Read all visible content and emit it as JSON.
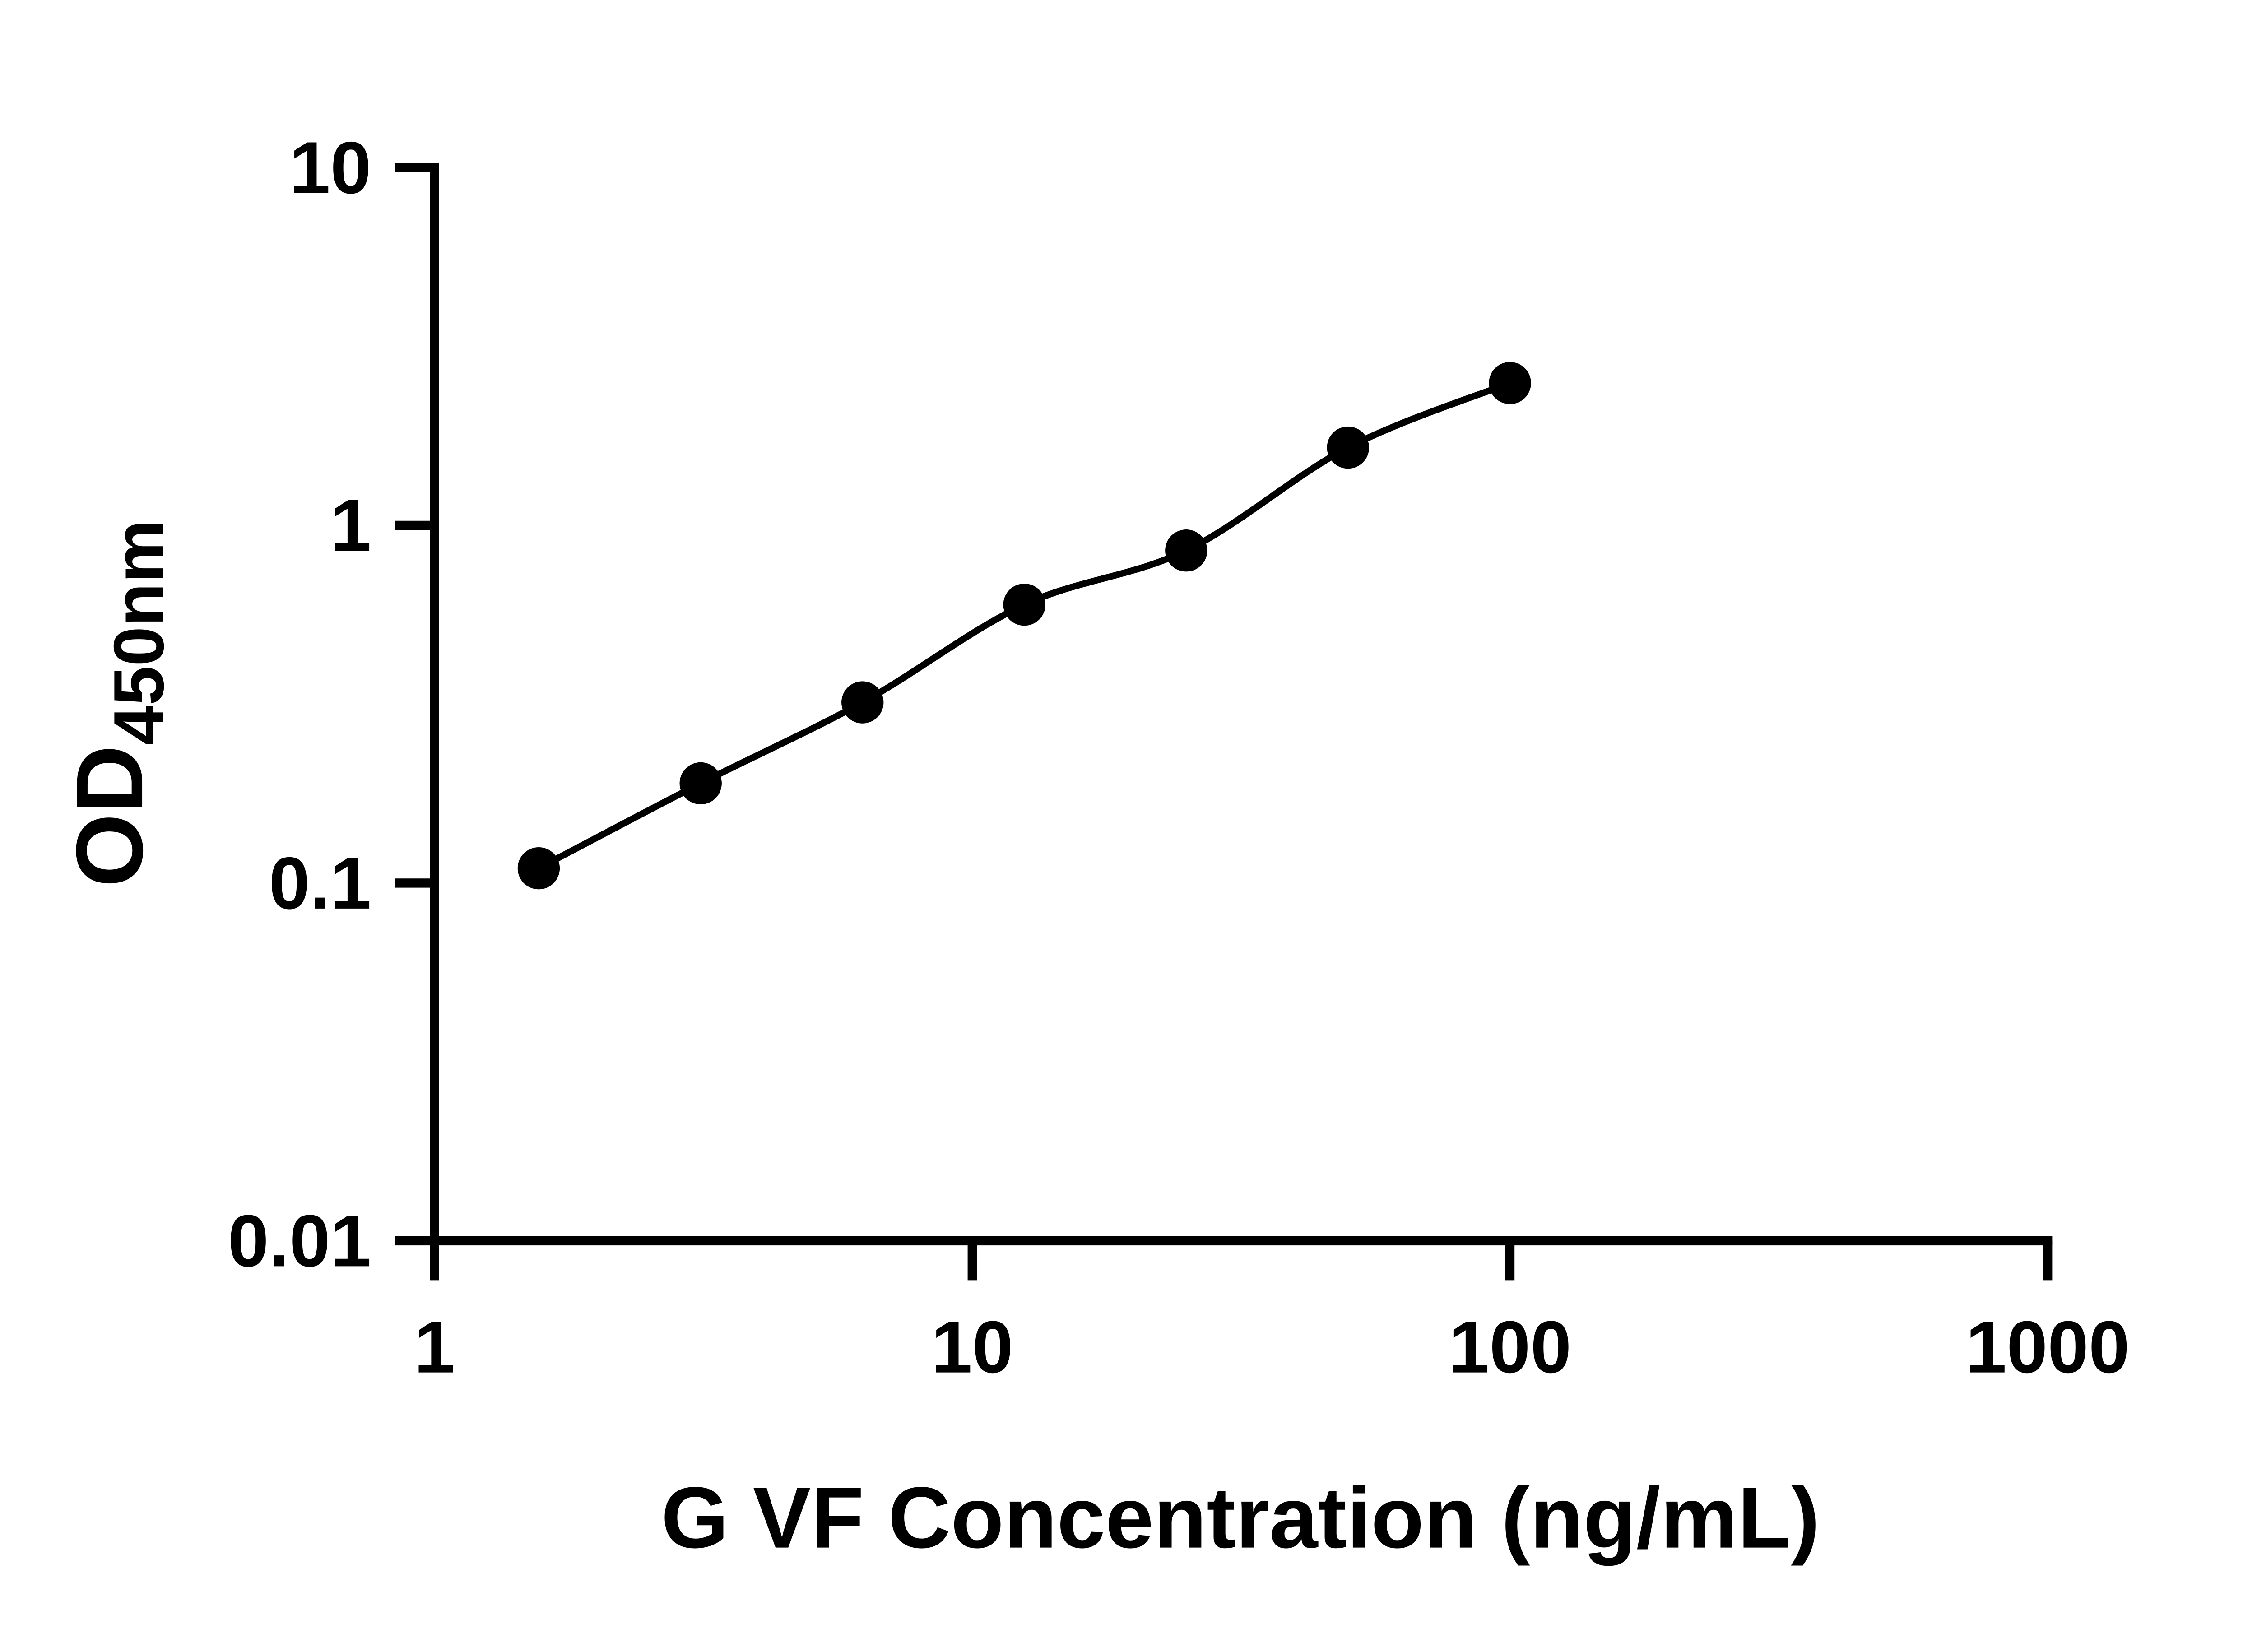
{
  "figure": {
    "background": "#ffffff"
  },
  "chart_data": {
    "type": "scatter",
    "curve": "smooth",
    "x": [
      1.5625,
      3.125,
      6.25,
      12.5,
      25,
      50,
      100
    ],
    "y": [
      0.11,
      0.19,
      0.32,
      0.6,
      0.85,
      1.65,
      2.5
    ],
    "xlabel": "G VF Concentration (ng/mL)",
    "ylabel_main": "OD",
    "ylabel_sub": "450nm",
    "xscale": "log",
    "yscale": "log",
    "xlim": [
      1,
      1000
    ],
    "ylim": [
      0.01,
      10
    ],
    "x_ticks": [
      1,
      10,
      100,
      1000
    ],
    "x_tick_labels": [
      "1",
      "10",
      "100",
      "1000"
    ],
    "y_ticks": [
      0.01,
      0.1,
      1,
      10
    ],
    "y_tick_labels": [
      "0.01",
      "0.1",
      "1",
      "10"
    ],
    "grid": false,
    "legend": false,
    "line_color": "#000000",
    "marker_color": "#000000",
    "axis_color": "#000000"
  }
}
